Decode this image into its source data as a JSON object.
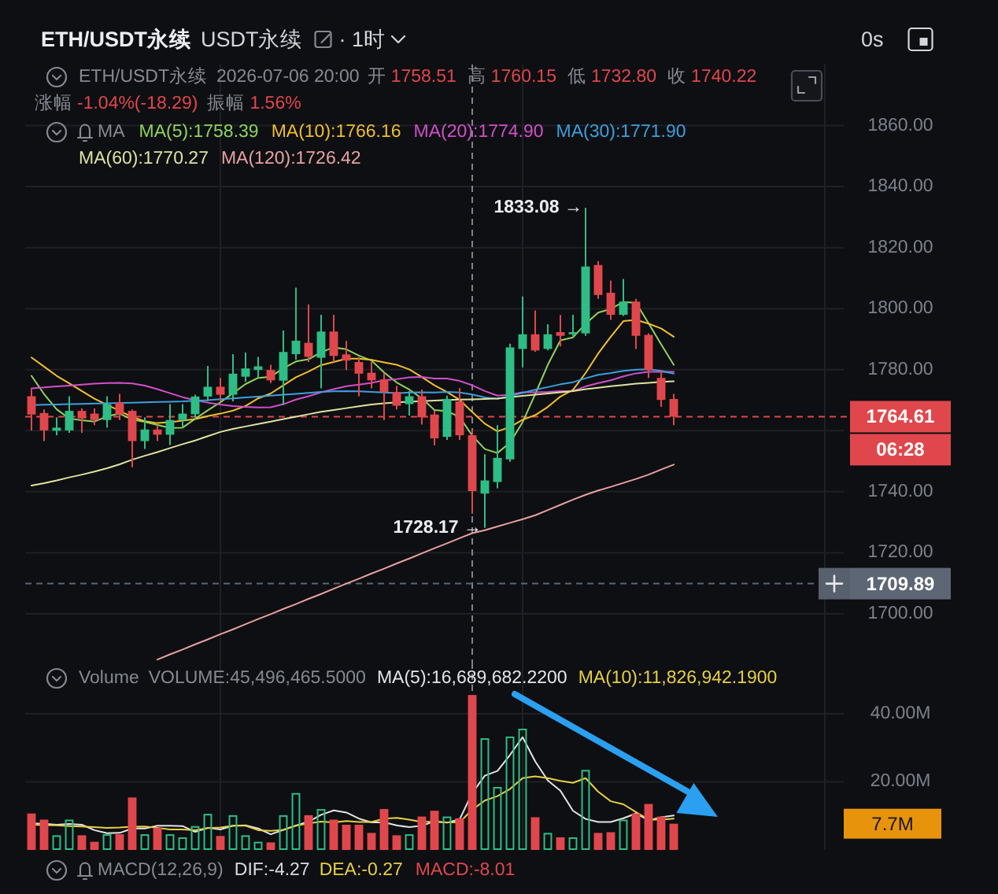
{
  "chart_data": [
    {
      "type": "candlestick",
      "title": "ETH/USDT永续",
      "subtitle": "USDT永续",
      "legend_title": "MA",
      "annotations": [
        "· 1时",
        "0s",
        "ETH/USDT永续",
        "2026-07-06 20:00",
        "开",
        "1758.51",
        "高",
        "1760.15",
        "低",
        "1732.80",
        "收",
        "1740.22",
        "涨幅",
        "-1.04%(-18.29)",
        "振幅",
        "1.56%",
        "1833.08 →",
        "1728.17 →",
        "06:28"
      ],
      "categories": [
        null,
        null,
        null,
        null,
        null,
        null,
        null,
        null,
        null,
        null,
        null,
        null,
        null,
        null,
        null,
        null,
        null,
        null,
        null,
        null,
        null,
        null,
        null,
        null,
        null,
        null,
        null,
        null,
        null,
        null,
        null,
        null,
        null,
        null,
        null,
        null,
        null,
        null,
        null,
        null,
        null,
        null,
        null,
        null,
        null,
        null,
        null,
        null,
        null,
        null,
        null,
        null
      ],
      "ohlc": [
        [
          1771.3,
          1773.9,
          1760.1,
          1765.3
        ],
        [
          1765.8,
          1767.0,
          1756.6,
          1760.1
        ],
        [
          1760.0,
          1764.4,
          1758.5,
          1761.0
        ],
        [
          1760.1,
          1771.3,
          1759.3,
          1766.5
        ],
        [
          1766.5,
          1767.3,
          1759.3,
          1764.0
        ],
        [
          1765.6,
          1767.3,
          1761.8,
          1763.5
        ],
        [
          1763.5,
          1771.3,
          1761.0,
          1768.7
        ],
        [
          1769.2,
          1772.1,
          1763.5,
          1765.3
        ],
        [
          1766.5,
          1767.0,
          1748.0,
          1756.6
        ],
        [
          1756.6,
          1764.4,
          1754.0,
          1760.4
        ],
        [
          1760.4,
          1761.8,
          1756.6,
          1758.7
        ],
        [
          1758.7,
          1768.7,
          1755.3,
          1763.5
        ],
        [
          1763.5,
          1768.7,
          1761.0,
          1765.6
        ],
        [
          1765.4,
          1771.8,
          1763.5,
          1771.2
        ],
        [
          1771.2,
          1781.2,
          1769.6,
          1774.4
        ],
        [
          1774.4,
          1777.3,
          1769.6,
          1771.8
        ],
        [
          1771.8,
          1785.1,
          1769.6,
          1778.7
        ],
        [
          1777.7,
          1785.6,
          1776.0,
          1780.4
        ],
        [
          1779.9,
          1784.2,
          1777.3,
          1781.1
        ],
        [
          1779.9,
          1781.6,
          1775.6,
          1776.5
        ],
        [
          1776.4,
          1792.8,
          1768.4,
          1785.8
        ],
        [
          1785.1,
          1806.9,
          1783.3,
          1789.5
        ],
        [
          1788.8,
          1801.4,
          1782.5,
          1784.2
        ],
        [
          1783.9,
          1798.0,
          1773.9,
          1792.5
        ],
        [
          1792.5,
          1798.0,
          1782.5,
          1784.5
        ],
        [
          1785.0,
          1789.4,
          1779.9,
          1783.0
        ],
        [
          1782.5,
          1784.2,
          1771.3,
          1778.7
        ],
        [
          1779.0,
          1782.5,
          1773.9,
          1776.5
        ],
        [
          1776.8,
          1779.0,
          1763.5,
          1772.7
        ],
        [
          1772.7,
          1774.7,
          1767.0,
          1768.2
        ],
        [
          1768.7,
          1773.0,
          1765.0,
          1771.3
        ],
        [
          1771.3,
          1773.5,
          1762.0,
          1764.4
        ],
        [
          1765.3,
          1766.5,
          1755.2,
          1757.5
        ],
        [
          1758.0,
          1771.5,
          1757.0,
          1770.4
        ],
        [
          1769.6,
          1774.0,
          1757.0,
          1758.5
        ],
        [
          1758.51,
          1760.15,
          1732.8,
          1740.22
        ],
        [
          1739.4,
          1752.3,
          1728.17,
          1743.7
        ],
        [
          1743.2,
          1761.8,
          1741.1,
          1751.1
        ],
        [
          1750.6,
          1788.5,
          1749.8,
          1787.3
        ],
        [
          1786.8,
          1804.0,
          1780.8,
          1791.6
        ],
        [
          1791.6,
          1799.4,
          1785.9,
          1786.3
        ],
        [
          1786.8,
          1794.9,
          1786.3,
          1791.6
        ],
        [
          1792.3,
          1797.9,
          1787.6,
          1791.1
        ],
        [
          1791.6,
          1798.0,
          1791.1,
          1792.3
        ],
        [
          1791.9,
          1833.08,
          1791.1,
          1813.8
        ],
        [
          1814.3,
          1815.6,
          1803.2,
          1804.5
        ],
        [
          1805.2,
          1809.2,
          1796.3,
          1798.0
        ],
        [
          1798.0,
          1809.7,
          1797.6,
          1802.3
        ],
        [
          1802.3,
          1803.2,
          1786.8,
          1791.1
        ],
        [
          1791.4,
          1791.9,
          1777.3,
          1779.9
        ],
        [
          1777.3,
          1779.9,
          1767.8,
          1770.1
        ],
        [
          1770.4,
          1772.1,
          1761.8,
          1764.61
        ]
      ],
      "colors": [
        "#e0474c",
        "#e0474c",
        "#2ebd85",
        "#2ebd85",
        "#e0474c",
        "#e0474c",
        "#2ebd85",
        "#e0474c",
        "#e0474c",
        "#2ebd85",
        "#e0474c",
        "#2ebd85",
        "#2ebd85",
        "#2ebd85",
        "#2ebd85",
        "#e0474c",
        "#2ebd85",
        "#2ebd85",
        "#2ebd85",
        "#e0474c",
        "#2ebd85",
        "#2ebd85",
        "#e0474c",
        "#2ebd85",
        "#e0474c",
        "#e0474c",
        "#e0474c",
        "#e0474c",
        "#e0474c",
        "#e0474c",
        "#2ebd85",
        "#e0474c",
        "#e0474c",
        "#2ebd85",
        "#e0474c",
        "#e0474c",
        "#2ebd85",
        "#2ebd85",
        "#2ebd85",
        "#2ebd85",
        "#e0474c",
        "#2ebd85",
        "#e0474c",
        "#2ebd85",
        "#2ebd85",
        "#e0474c",
        "#e0474c",
        "#2ebd85",
        "#e0474c",
        "#e0474c",
        "#e0474c",
        "#e0474c"
      ],
      "series": [
        {
          "name": "MA(5):1758.39",
          "type": "line",
          "color": "#8ed45c",
          "values": [
            1778.0,
            1772.0,
            1767.0,
            1764.0,
            1763.4,
            1763.0,
            1764.7,
            1765.6,
            1763.6,
            1762.9,
            1761.9,
            1760.9,
            1761.0,
            1763.9,
            1766.7,
            1769.3,
            1772.3,
            1775.3,
            1777.3,
            1777.7,
            1780.5,
            1782.7,
            1783.4,
            1785.7,
            1787.3,
            1786.7,
            1784.6,
            1783.0,
            1779.1,
            1775.8,
            1773.5,
            1770.6,
            1766.8,
            1766.4,
            1764.5,
            1758.39,
            1754.0,
            1752.7,
            1756.1,
            1762.8,
            1772.0,
            1781.6,
            1789.6,
            1790.6,
            1795.0,
            1798.7,
            1799.9,
            1802.2,
            1801.9,
            1795.2,
            1788.3,
            1781.6
          ]
        },
        {
          "name": "MA(10):1766.16",
          "type": "line",
          "color": "#f0bf2c",
          "values": [
            1784.0,
            1781.0,
            1778.0,
            1775.5,
            1773.0,
            1770.5,
            1768.5,
            1766.5,
            1764.5,
            1763.1,
            1762.5,
            1762.8,
            1763.3,
            1763.8,
            1764.8,
            1765.6,
            1766.6,
            1768.1,
            1770.6,
            1772.2,
            1774.9,
            1777.5,
            1779.4,
            1781.5,
            1782.5,
            1783.6,
            1783.6,
            1783.2,
            1782.4,
            1781.6,
            1780.1,
            1777.6,
            1774.9,
            1772.7,
            1770.1,
            1766.16,
            1762.3,
            1759.8,
            1761.2,
            1763.6,
            1765.1,
            1767.8,
            1771.2,
            1773.4,
            1778.9,
            1785.3,
            1790.8,
            1795.9,
            1796.3,
            1795.1,
            1793.5,
            1790.8
          ]
        },
        {
          "name": "MA(20):1774.90",
          "type": "line",
          "color": "#d24fca",
          "values": [
            1773.9,
            1774.2,
            1774.5,
            1774.8,
            1775.1,
            1775.4,
            1775.6,
            1775.7,
            1775.5,
            1774.8,
            1773.6,
            1772.3,
            1771.0,
            1770.0,
            1769.2,
            1768.6,
            1768.1,
            1767.8,
            1767.6,
            1767.7,
            1768.7,
            1770.2,
            1771.3,
            1772.6,
            1773.6,
            1774.6,
            1775.1,
            1775.7,
            1776.5,
            1776.9,
            1777.5,
            1777.6,
            1777.1,
            1777.1,
            1776.3,
            1774.9,
            1773.0,
            1771.5,
            1771.8,
            1772.6,
            1772.6,
            1772.7,
            1773.0,
            1773.0,
            1774.5,
            1775.6,
            1776.5,
            1777.8,
            1778.8,
            1779.3,
            1779.3,
            1779.3
          ]
        },
        {
          "name": "MA(30):1771.90",
          "type": "line",
          "color": "#3c9fde",
          "values": [
            1768.4,
            1768.5,
            1768.6,
            1768.7,
            1768.8,
            1768.9,
            1769.0,
            1769.1,
            1769.2,
            1769.3,
            1769.4,
            1769.5,
            1769.6,
            1769.8,
            1770.0,
            1770.3,
            1770.6,
            1770.9,
            1771.2,
            1771.5,
            1771.8,
            1772.1,
            1772.4,
            1772.7,
            1772.9,
            1773.0,
            1772.9,
            1772.7,
            1772.5,
            1772.3,
            1772.5,
            1772.6,
            1772.5,
            1772.7,
            1772.5,
            1771.9,
            1770.9,
            1770.4,
            1771.4,
            1772.4,
            1773.4,
            1774.3,
            1775.2,
            1775.9,
            1777.2,
            1778.3,
            1778.9,
            1779.6,
            1780.0,
            1780.1,
            1779.6,
            1778.7
          ]
        },
        {
          "name": "MA(60):1770.27",
          "type": "line",
          "color": "#dde3a0",
          "values": [
            1742.0,
            1742.8,
            1743.7,
            1744.7,
            1745.6,
            1746.6,
            1747.7,
            1749.0,
            1750.5,
            1751.8,
            1753.0,
            1754.3,
            1755.6,
            1756.8,
            1758.2,
            1759.6,
            1760.6,
            1761.4,
            1762.2,
            1763.0,
            1763.8,
            1764.6,
            1765.4,
            1766.2,
            1766.8,
            1767.4,
            1768.0,
            1768.6,
            1769.0,
            1769.3,
            1769.5,
            1769.7,
            1769.9,
            1770.1,
            1770.2,
            1770.27,
            1770.4,
            1770.6,
            1771.0,
            1771.4,
            1771.8,
            1772.2,
            1772.6,
            1773.0,
            1773.6,
            1774.1,
            1774.6,
            1775.0,
            1775.4,
            1775.7,
            1776.0,
            1776.2
          ]
        },
        {
          "name": "MA(120):1726.42",
          "type": "line",
          "color": "#e8a1a3",
          "values": [
            null,
            null,
            null,
            null,
            null,
            null,
            null,
            null,
            null,
            null,
            1685.0,
            1686.7,
            1688.3,
            1690.0,
            1691.6,
            1693.3,
            1694.9,
            1696.6,
            1698.3,
            1699.9,
            1701.6,
            1703.2,
            1704.9,
            1706.5,
            1708.2,
            1709.9,
            1711.5,
            1713.2,
            1714.8,
            1716.5,
            1718.1,
            1719.8,
            1721.5,
            1723.1,
            1724.8,
            1726.42,
            1727.4,
            1728.6,
            1729.8,
            1731.0,
            1732.3,
            1734.0,
            1735.7,
            1737.4,
            1739.0,
            1740.4,
            1741.6,
            1742.9,
            1744.2,
            1745.6,
            1747.3,
            1748.9
          ]
        }
      ],
      "ylim": [
        1684,
        1880
      ],
      "yticks": [
        {
          "value": 1700,
          "label": "1700.00"
        },
        {
          "value": 1720,
          "label": "1720.00"
        },
        {
          "value": 1740,
          "label": "1740.00"
        },
        {
          "value": 1760,
          "label": null
        },
        {
          "value": 1780,
          "label": "1780.00"
        },
        {
          "value": 1800,
          "label": "1800.00"
        },
        {
          "value": 1820,
          "label": "1820.00"
        },
        {
          "value": 1840,
          "label": "1840.00"
        },
        {
          "value": 1860,
          "label": "1860.00"
        }
      ],
      "grid": true,
      "legend": "top right",
      "tick_labels": "y",
      "ref_lines": [
        {
          "axis": "y",
          "value": 1764.61,
          "label": "1764.61",
          "color": "#e0474c",
          "line_style": "dashed"
        },
        {
          "axis": "y",
          "value": 1709.89,
          "label": "1709.89",
          "color": "#5d6674",
          "line_style": "dashed"
        }
      ]
    },
    {
      "type": "bar",
      "title": "Volume",
      "annotations": [
        "VOLUME:45,496,465.5000",
        "7.7M"
      ],
      "categories": [
        null,
        null,
        null,
        null,
        null,
        null,
        null,
        null,
        null,
        null,
        null,
        null,
        null,
        null,
        null,
        null,
        null,
        null,
        null,
        null,
        null,
        null,
        null,
        null,
        null,
        null,
        null,
        null,
        null,
        null,
        null,
        null,
        null,
        null,
        null,
        null,
        null,
        null,
        null,
        null,
        null,
        null,
        null,
        null,
        null,
        null,
        null,
        null,
        null,
        null,
        null,
        null
      ],
      "series": [
        {
          "colors": [
            "#e0474c",
            "#e0474c",
            "#2ebd85",
            "#2ebd85",
            "#e0474c",
            "#e0474c",
            "#2ebd85",
            "#e0474c",
            "#e0474c",
            "#2ebd85",
            "#e0474c",
            "#2ebd85",
            "#2ebd85",
            "#2ebd85",
            "#2ebd85",
            "#e0474c",
            "#2ebd85",
            "#2ebd85",
            "#2ebd85",
            "#e0474c",
            "#2ebd85",
            "#2ebd85",
            "#e0474c",
            "#2ebd85",
            "#e0474c",
            "#e0474c",
            "#e0474c",
            "#e0474c",
            "#e0474c",
            "#e0474c",
            "#2ebd85",
            "#e0474c",
            "#e0474c",
            "#2ebd85",
            "#e0474c",
            "#e0474c",
            "#2ebd85",
            "#2ebd85",
            "#2ebd85",
            "#2ebd85",
            "#e0474c",
            "#2ebd85",
            "#e0474c",
            "#2ebd85",
            "#2ebd85",
            "#e0474c",
            "#e0474c",
            "#2ebd85",
            "#e0474c",
            "#e0474c",
            "#e0474c",
            "#e0474c"
          ],
          "values": [
            10.7,
            8.9,
            4.3,
            8.9,
            4.3,
            2.4,
            4.6,
            4.6,
            15.4,
            4.6,
            6.5,
            4.6,
            3.7,
            7.0,
            10.6,
            4.1,
            10.2,
            4.3,
            2.4,
            2.2,
            10.2,
            16.7,
            10.2,
            12.0,
            8.9,
            7.4,
            7.4,
            5.0,
            12.0,
            4.3,
            4.6,
            9.8,
            11.5,
            9.8,
            9.3,
            45.4964655,
            32.8,
            18.5,
            33.3,
            35.6,
            9.6,
            5.0,
            3.7,
            3.7,
            23.5,
            5.0,
            5.2,
            8.9,
            10.7,
            13.5,
            9.8,
            7.7
          ]
        },
        {
          "name": "MA(5):16,689,682.2200",
          "type": "line",
          "color": "#e4e4e6",
          "values": [
            7.8,
            7.7,
            7.4,
            7.6,
            7.4,
            5.8,
            4.9,
            5.0,
            6.3,
            6.3,
            7.1,
            7.1,
            7.0,
            5.3,
            6.5,
            6.0,
            7.1,
            7.2,
            6.3,
            4.6,
            5.9,
            7.2,
            8.3,
            10.3,
            11.6,
            11.0,
            9.2,
            8.1,
            8.1,
            7.2,
            6.7,
            7.1,
            8.4,
            8.0,
            9.0,
            16.6896822,
            21.8,
            23.2,
            27.9,
            33.1,
            26.0,
            20.4,
            17.4,
            11.5,
            9.1,
            8.2,
            8.2,
            9.3,
            10.7,
            8.7,
            9.6,
            10.1
          ]
        },
        {
          "name": "MA(10):11,826,942.1900",
          "type": "line",
          "color": "#e6cf45",
          "values": [
            7.4,
            7.3,
            7.2,
            7.0,
            6.9,
            6.7,
            6.5,
            6.6,
            6.8,
            6.9,
            6.5,
            6.0,
            6.0,
            5.8,
            6.4,
            6.6,
            7.1,
            7.1,
            5.8,
            5.6,
            5.9,
            7.1,
            7.8,
            8.3,
            8.1,
            8.5,
            8.2,
            8.2,
            9.2,
            9.4,
            8.9,
            8.2,
            8.3,
            8.1,
            8.1,
            11.8269422,
            14.5,
            15.8,
            17.9,
            21.1,
            21.6,
            21.1,
            20.3,
            19.7,
            21.1,
            17.1,
            14.3,
            13.4,
            11.1,
            8.9,
            8.9,
            9.2
          ]
        }
      ],
      "ylim": [
        0,
        55
      ],
      "yticks": [
        {
          "value": 20,
          "label": "20.00M"
        },
        {
          "value": 40,
          "label": "40.00M"
        }
      ],
      "grid": true,
      "legend": "top right",
      "tick_labels": "y"
    },
    {
      "type": "other",
      "title": "MACD(12,26,9)",
      "annotations": [
        "DIF:-4.27",
        "DEA:-0.27",
        "MACD:-8.01"
      ]
    }
  ]
}
